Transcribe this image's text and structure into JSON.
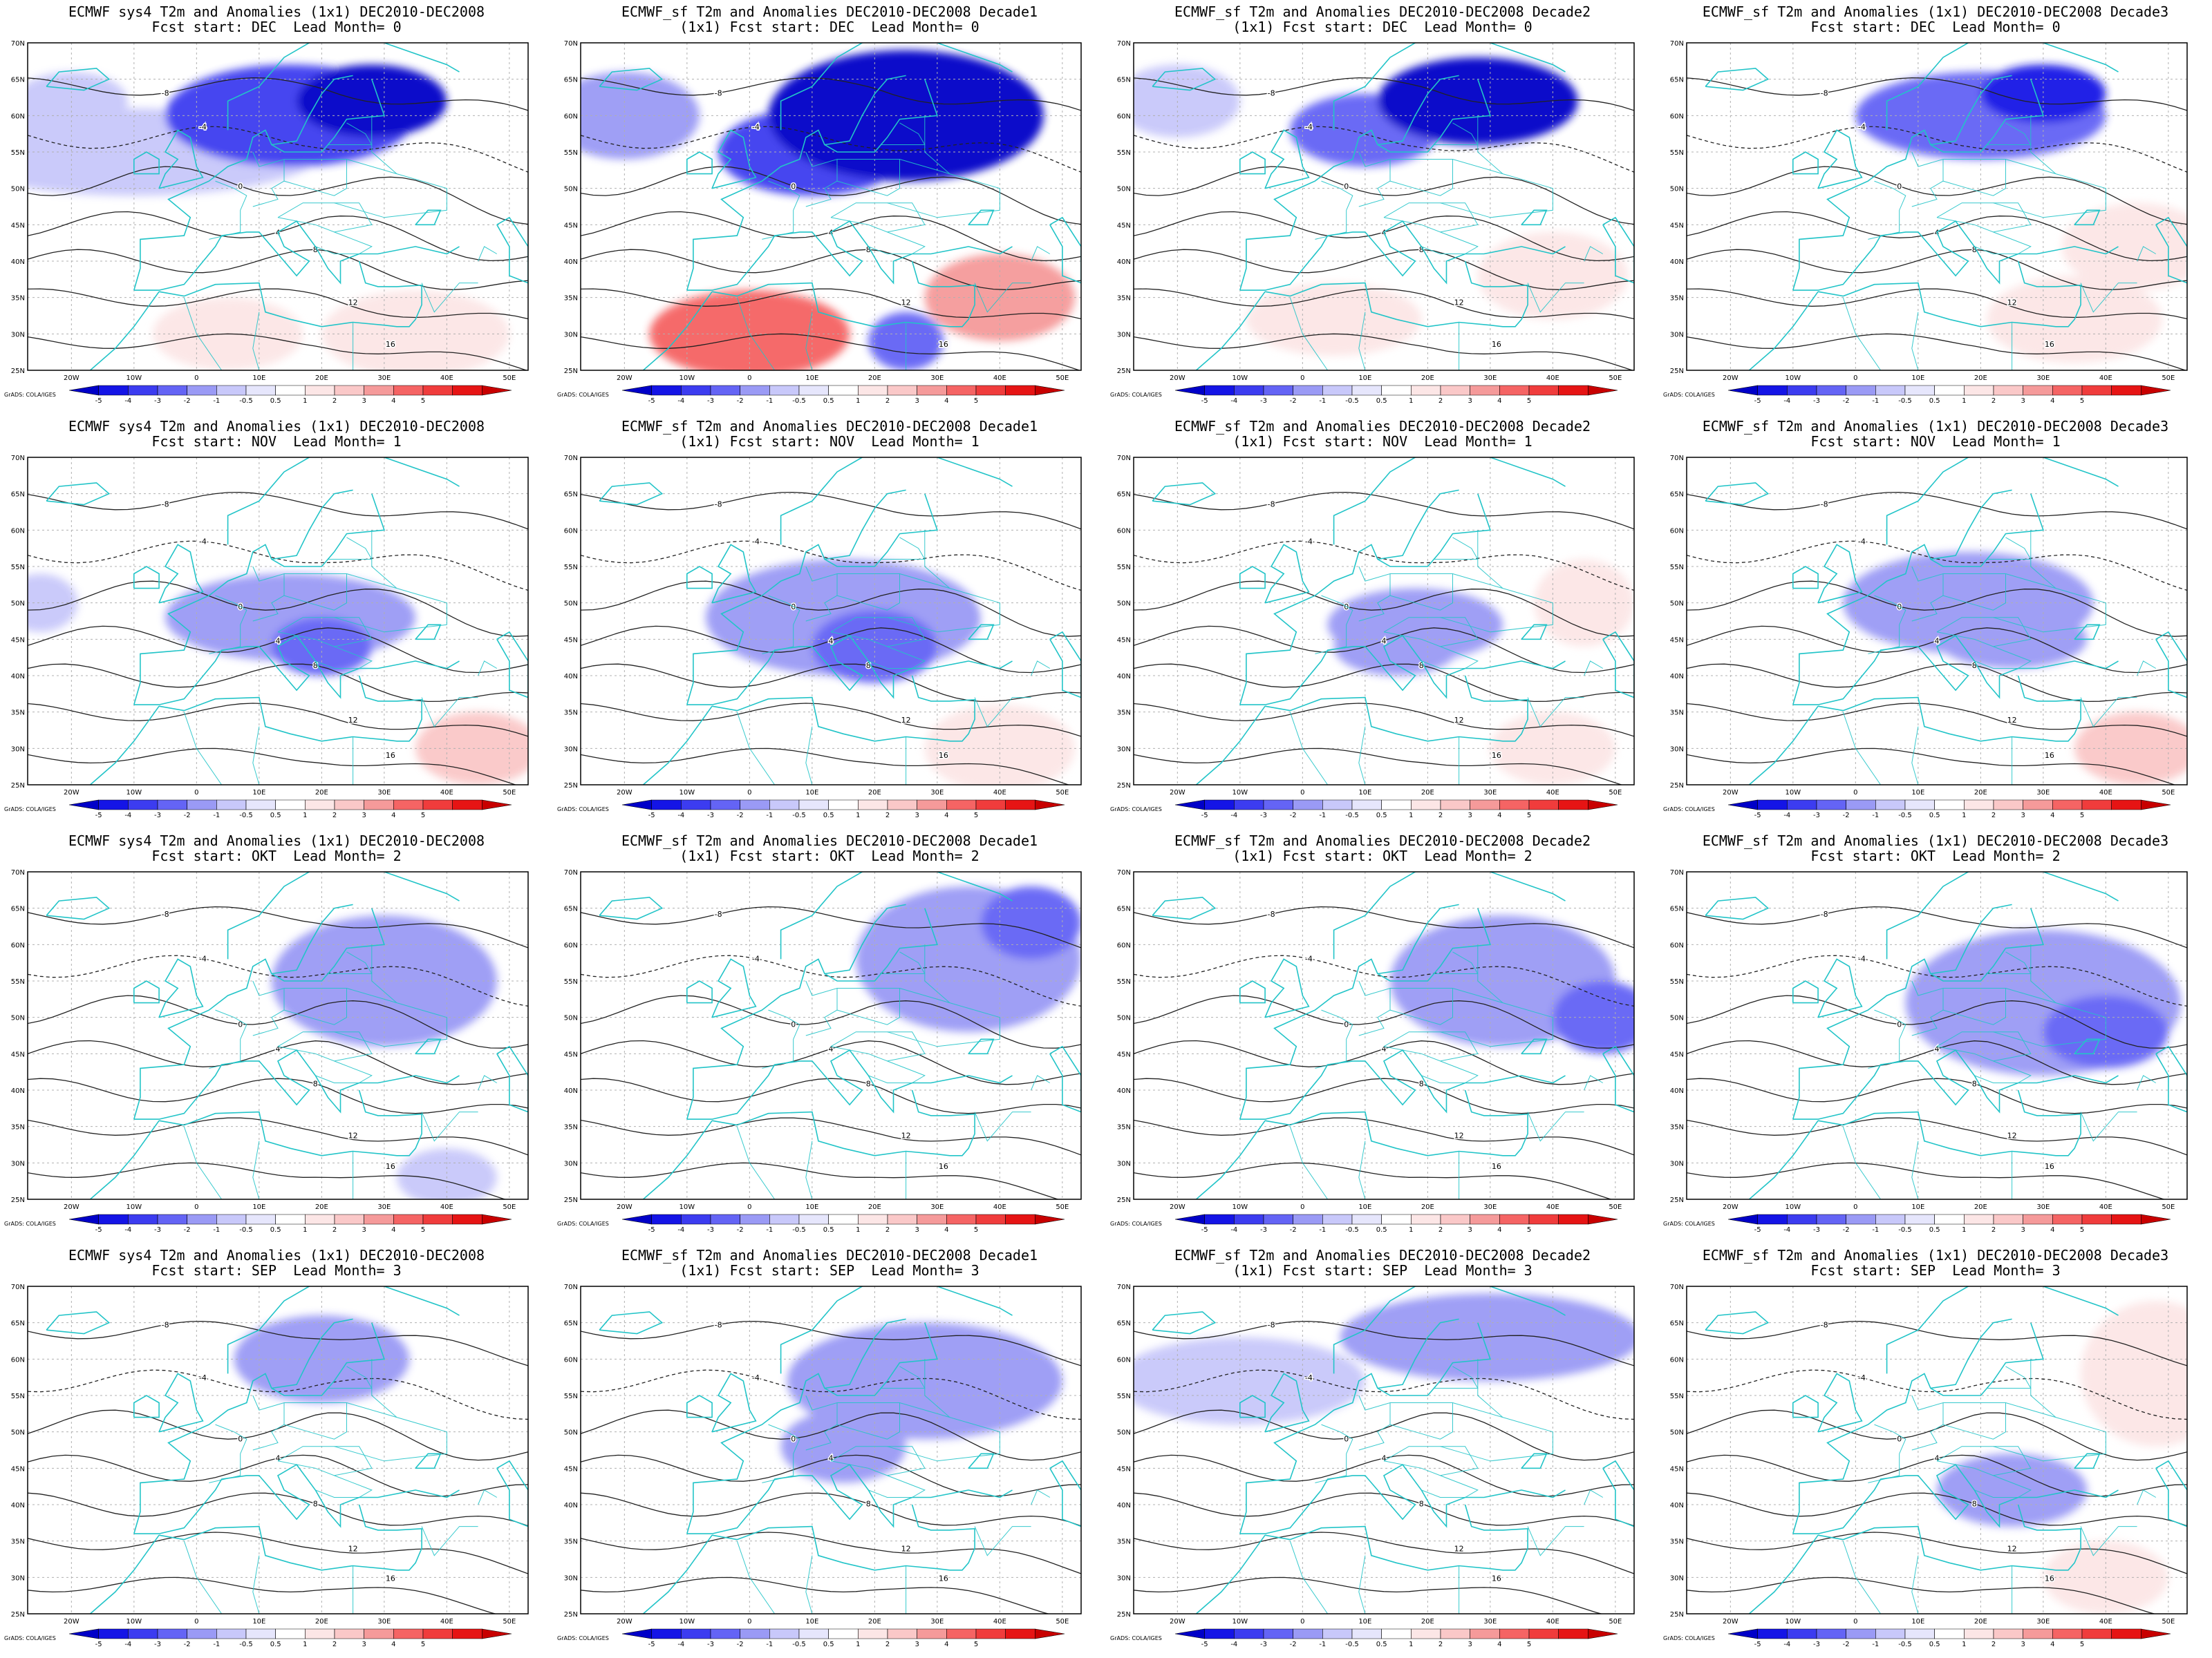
{
  "figure": {
    "rows": [
      {
        "lead_month": "Lead Month= 0",
        "start": "DEC"
      },
      {
        "lead_month": "Lead Month= 1",
        "start": "NOV"
      },
      {
        "lead_month": "Lead Month= 2",
        "start": "OKT"
      },
      {
        "lead_month": "Lead Month= 3",
        "start": "SEP"
      }
    ],
    "columns": [
      {
        "title_1": "ECMWF sys4 T2m and Anomalies (1x1) DEC2010-DEC2008",
        "has_sub": false
      },
      {
        "title_1": "ECMWF_sf T2m and Anomalies DEC2010-DEC2008 Decade1",
        "sub_prefix": "(1x1)",
        "has_sub": true
      },
      {
        "title_1": "ECMWF_sf T2m and Anomalies DEC2010-DEC2008 Decade2",
        "sub_prefix": "(1x1)",
        "has_sub": true
      },
      {
        "title_1": "ECMWF_sf T2m and Anomalies (1x1) DEC2010-DEC2008 Decade3",
        "has_sub": false
      }
    ],
    "panel_titles": [
      [
        "ECMWF sys4 T2m and Anomalies (1x1) DEC2010-DEC2008",
        "Fcst start: DEC  Lead Month= 0",
        "ECMWF_sf T2m and Anomalies DEC2010-DEC2008 Decade1",
        "(1x1) Fcst start: DEC  Lead Month= 0",
        "ECMWF_sf T2m and Anomalies DEC2010-DEC2008 Decade2",
        "(1x1) Fcst start: DEC  Lead Month= 0",
        "ECMWF_sf T2m and Anomalies (1x1) DEC2010-DEC2008 Decade3",
        "Fcst start: DEC  Lead Month= 0"
      ],
      [
        "ECMWF sys4 T2m and Anomalies (1x1) DEC2010-DEC2008",
        "Fcst start: NOV  Lead Month= 1",
        "ECMWF_sf T2m and Anomalies DEC2010-DEC2008 Decade1",
        "(1x1) Fcst start: NOV  Lead Month= 1",
        "ECMWF_sf T2m and Anomalies DEC2010-DEC2008 Decade2",
        "(1x1) Fcst start: NOV  Lead Month= 1",
        "ECMWF_sf T2m and Anomalies (1x1) DEC2010-DEC2008 Decade3",
        "Fcst start: NOV  Lead Month= 1"
      ],
      [
        "ECMWF sys4 T2m and Anomalies (1x1) DEC2010-DEC2008",
        "Fcst start: OKT  Lead Month= 2",
        "ECMWF_sf T2m and Anomalies DEC2010-DEC2008 Decade1",
        "(1x1) Fcst start: OKT  Lead Month= 2",
        "ECMWF_sf T2m and Anomalies DEC2010-DEC2008 Decade2",
        "(1x1) Fcst start: OKT  Lead Month= 2",
        "ECMWF_sf T2m and Anomalies (1x1) DEC2010-DEC2008 Decade3",
        "Fcst start: OKT  Lead Month= 2"
      ],
      [
        "ECMWF sys4 T2m and Anomalies (1x1) DEC2010-DEC2008",
        "Fcst start: SEP  Lead Month= 3",
        "ECMWF_sf T2m and Anomalies DEC2010-DEC2008 Decade1",
        "(1x1) Fcst start: SEP  Lead Month= 3",
        "ECMWF_sf T2m and Anomalies DEC2010-DEC2008 Decade2",
        "(1x1) Fcst start: SEP  Lead Month= 3",
        "ECMWF_sf T2m and Anomalies (1x1) DEC2010-DEC2008 Decade3",
        "Fcst start: SEP  Lead Month= 3"
      ]
    ],
    "lat_labels": [
      "70N",
      "65N",
      "60N",
      "55N",
      "50N",
      "45N",
      "40N",
      "35N",
      "30N",
      "25N"
    ],
    "lon_labels": [
      "20W",
      "10W",
      "0",
      "10E",
      "20E",
      "30E",
      "40E",
      "50E"
    ],
    "lat_range": [
      25,
      70
    ],
    "lon_range": [
      -27,
      53
    ],
    "colorbar": {
      "ticks": [
        "-5",
        "-4",
        "-3",
        "-2",
        "-1",
        "-0.5",
        "0.5",
        "1",
        "2",
        "3",
        "4",
        "5"
      ],
      "colors": [
        "#0000c8",
        "#1414e6",
        "#3c3cf0",
        "#6464f5",
        "#9a9af5",
        "#c8c8fa",
        "#e6e6fc",
        "#ffffff",
        "#fce6e6",
        "#fac8c8",
        "#f59a9a",
        "#f56464",
        "#f03c3c",
        "#e61414",
        "#c80000"
      ],
      "credit": "GrADS: COLA/IGES"
    },
    "anomaly_blobs": [
      [
        [
          [
            [
              -20,
              62,
              9,
              4,
              -0.8
            ],
            [
              15,
              60,
              20,
              7,
              -3
            ],
            [
              28,
              62,
              12,
              5,
              -5
            ],
            [
              -10,
              55,
              30,
              6,
              -0.7
            ],
            [
              35,
              30,
              15,
              6,
              2
            ],
            [
              5,
              30,
              12,
              5,
              2
            ],
            [
              -20,
              32,
              10,
              3,
              0.8
            ]
          ]
        ],
        [
          [
            [
              -20,
              60,
              12,
              6,
              -1
            ],
            [
              25,
              60,
              22,
              9,
              -7
            ],
            [
              10,
              55,
              15,
              6,
              -3
            ],
            [
              40,
              35,
              12,
              6,
              4
            ],
            [
              0,
              30,
              16,
              6,
              5
            ],
            [
              25,
              29,
              6,
              4,
              -2
            ],
            [
              -25,
              40,
              8,
              4,
              0.8
            ]
          ]
        ],
        [
          [
            [
              -20,
              62,
              10,
              5,
              -0.8
            ],
            [
              28,
              62,
              16,
              6,
              -5
            ],
            [
              10,
              58,
              12,
              5,
              -2
            ],
            [
              40,
              38,
              12,
              6,
              2
            ],
            [
              5,
              32,
              14,
              5,
              2
            ],
            [
              -20,
              32,
              10,
              4,
              1
            ]
          ]
        ],
        [
          [
            [
              20,
              60,
              20,
              6,
              -2
            ],
            [
              30,
              63,
              10,
              4,
              -4
            ],
            [
              45,
              42,
              12,
              6,
              2
            ],
            [
              35,
              32,
              14,
              6,
              2
            ],
            [
              0,
              33,
              14,
              4,
              0.8
            ]
          ]
        ]
      ],
      [
        [
          [
            [
              15,
              48,
              20,
              6,
              -1.5
            ],
            [
              20,
              44,
              8,
              4,
              -2
            ],
            [
              45,
              30,
              10,
              5,
              3
            ],
            [
              -25,
              50,
              6,
              4,
              -0.7
            ]
          ]
        ],
        [
          [
            [
              15,
              48,
              22,
              8,
              -1.5
            ],
            [
              20,
              44,
              10,
              5,
              -2.5
            ],
            [
              45,
              50,
              8,
              5,
              1
            ],
            [
              40,
              30,
              12,
              6,
              1.5
            ]
          ]
        ],
        [
          [
            [
              18,
              47,
              14,
              5,
              -1
            ],
            [
              15,
              44,
              10,
              4,
              -1.5
            ],
            [
              45,
              50,
              8,
              6,
              1.5
            ],
            [
              40,
              30,
              10,
              5,
              2
            ],
            [
              10,
              65,
              6,
              4,
              1
            ]
          ]
        ],
        [
          [
            [
              18,
              50,
              20,
              7,
              -1.5
            ],
            [
              25,
              45,
              12,
              4,
              -1.5
            ],
            [
              45,
              30,
              10,
              5,
              2.5
            ],
            [
              -25,
              55,
              6,
              4,
              0.8
            ]
          ]
        ]
      ],
      [
        [
          [
            [
              30,
              55,
              18,
              9,
              -1.5
            ],
            [
              -20,
              40,
              6,
              4,
              0.7
            ],
            [
              40,
              28,
              8,
              4,
              -0.8
            ]
          ]
        ],
        [
          [
            [
              35,
              58,
              18,
              10,
              -1.5
            ],
            [
              45,
              63,
              8,
              5,
              -2
            ],
            [
              -20,
              62,
              8,
              4,
              0.8
            ],
            [
              5,
              45,
              10,
              5,
              0.7
            ]
          ]
        ],
        [
          [
            [
              32,
              55,
              18,
              9,
              -1.5
            ],
            [
              48,
              50,
              8,
              5,
              -2
            ],
            [
              -20,
              62,
              8,
              4,
              0.8
            ],
            [
              -22,
              38,
              6,
              3,
              0.8
            ]
          ]
        ],
        [
          [
            [
              30,
              52,
              22,
              10,
              -1.5
            ],
            [
              40,
              48,
              10,
              5,
              -2
            ],
            [
              -20,
              65,
              8,
              4,
              0.8
            ]
          ]
        ]
      ],
      [
        [
          [
            [
              20,
              60,
              14,
              6,
              -1
            ],
            [
              40,
              35,
              10,
              6,
              1
            ],
            [
              -22,
              45,
              6,
              4,
              0.8
            ]
          ]
        ],
        [
          [
            [
              28,
              57,
              22,
              8,
              -1.5
            ],
            [
              15,
              48,
              10,
              5,
              -1
            ],
            [
              -22,
              50,
              6,
              4,
              0.8
            ],
            [
              40,
              33,
              10,
              5,
              1
            ]
          ]
        ],
        [
          [
            [
              30,
              63,
              24,
              6,
              -1.5
            ],
            [
              -10,
              57,
              20,
              6,
              -0.8
            ],
            [
              40,
              32,
              10,
              5,
              1
            ]
          ]
        ],
        [
          [
            [
              48,
              58,
              12,
              10,
              2
            ],
            [
              25,
              42,
              12,
              5,
              -1
            ],
            [
              40,
              30,
              10,
              5,
              1.2
            ],
            [
              -22,
              48,
              6,
              4,
              0.8
            ]
          ]
        ]
      ]
    ]
  }
}
